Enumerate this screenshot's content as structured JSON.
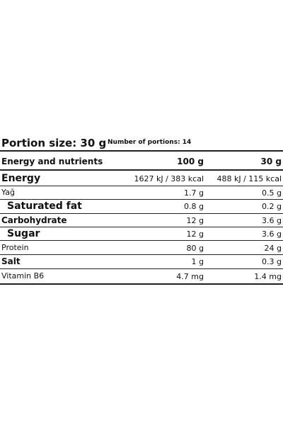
{
  "header": {
    "portion_size": "Portion size: 30 g",
    "number_of_portions": "Number of portions: 14"
  },
  "table": {
    "columns": [
      "Energy and nutrients",
      "100 g",
      "30 g"
    ],
    "rows": [
      [
        "Energy",
        "1627 kJ / 383 kcal",
        "488 kJ / 115 kcal"
      ],
      [
        "Yağ",
        "1.7 g",
        "0.5 g"
      ],
      [
        "Saturated fat",
        "0.8 g",
        "0.2 g"
      ],
      [
        "Carbohydrate",
        "12 g",
        "3.6 g"
      ],
      [
        "Sugar",
        "12 g",
        "3.6 g"
      ],
      [
        "Protein",
        "80 g",
        "24 g"
      ],
      [
        "Salt",
        "1 g",
        "0.3 g"
      ],
      [
        "Vitamin B6",
        "4.7 mg",
        "1.4 mg"
      ]
    ]
  }
}
